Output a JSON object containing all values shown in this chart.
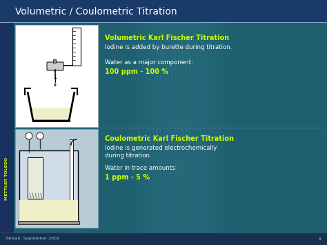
{
  "title": "Volumetric / Coulometric Titration",
  "title_color": "#ffffff",
  "title_fontsize": 10,
  "section1_heading": "Volumetric Karl Fischer Titration",
  "section1_line1": "Iodine is added by burette during titration.",
  "section1_line2": "Water as a major component:",
  "section1_line3": "100 ppm - 100 %",
  "section2_heading": "Coulometric Karl Fischer Titration",
  "section2_line1": "Iodine is generated electrochemically",
  "section2_line2": "during titration.",
  "section2_line3": "Water in trace amounts:",
  "section2_line4": "1 ppm - 5 %",
  "heading_color": "#ccff00",
  "text_color": "#ffffff",
  "highlight_color": "#ccff00",
  "footer_text": "Taiwan, September 2002",
  "footer_page": "9",
  "footer_color": "#aacccc",
  "sidebar_text": "METTLER TOLEDO",
  "sidebar_color": "#ccff00",
  "divider_color": "#88aacc",
  "liquid_color": "#f0f0c8",
  "header_bg": "#1a3a6a",
  "main_bg": "#1e6070",
  "sidebar_bg": "#1a3060",
  "footer_bg": "#183050",
  "box1_bg": "#ffffff",
  "box2_bg": "#b8ccd8"
}
